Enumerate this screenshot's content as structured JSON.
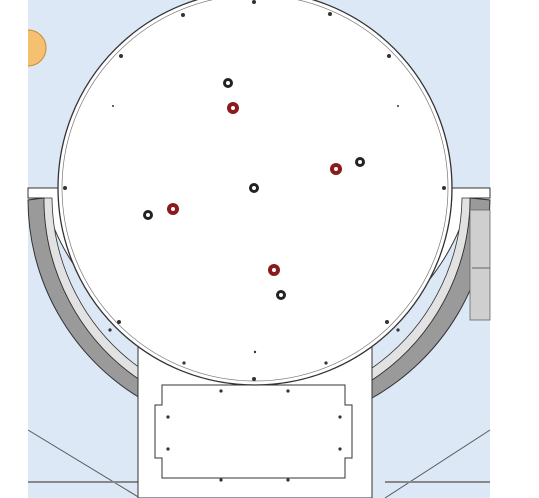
{
  "drawing": {
    "holes": [
      {
        "kind": "marked",
        "color": "#8b1a1a"
      },
      {
        "kind": "marked",
        "color": "#8b1a1a"
      },
      {
        "kind": "marked",
        "color": "#8b1a1a"
      },
      {
        "kind": "marked",
        "color": "#8b1a1a"
      },
      {
        "kind": "plain",
        "color": "#222222"
      },
      {
        "kind": "plain",
        "color": "#222222"
      },
      {
        "kind": "plain",
        "color": "#222222"
      },
      {
        "kind": "plain",
        "color": "#222222"
      },
      {
        "kind": "plain",
        "color": "#222222"
      }
    ],
    "colors": {
      "background": "#dde8f6",
      "plate": "#ffffff",
      "outline": "#333333",
      "ring_dark": "#8a8a8a",
      "ring_light": "#d8d8d8",
      "accent_orange": "#f5c06f"
    }
  }
}
